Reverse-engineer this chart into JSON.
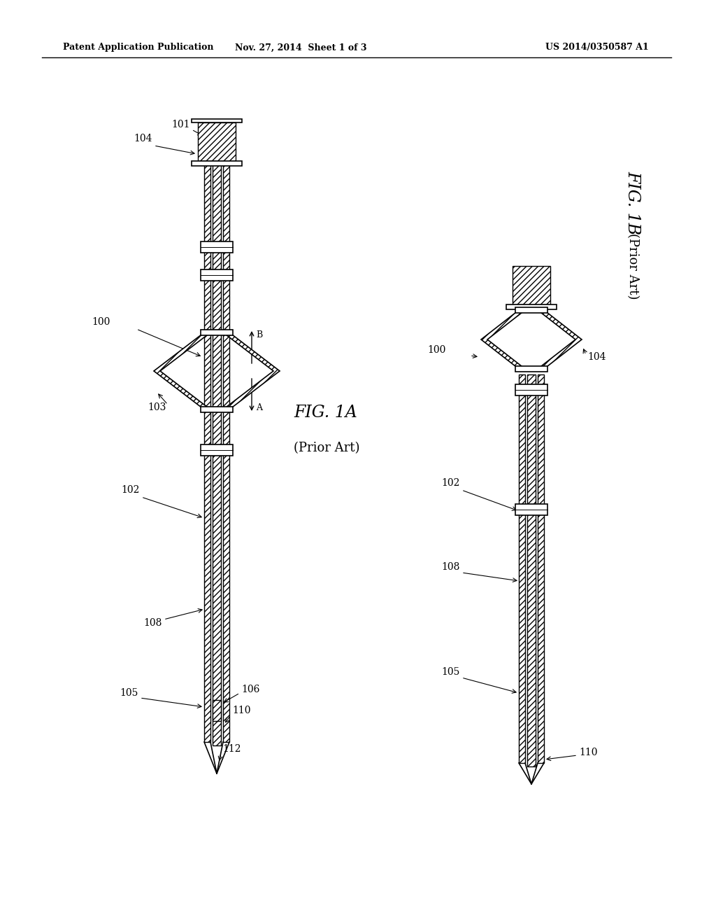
{
  "header_left": "Patent Application Publication",
  "header_mid": "Nov. 27, 2014  Sheet 1 of 3",
  "header_right": "US 2014/0350587 A1",
  "fig1a_label": "FIG. 1A",
  "fig1a_sub": "(Prior Art)",
  "fig1b_label": "FIG. 1B",
  "fig1b_sub": "(Prior Art)",
  "background_color": "#ffffff",
  "line_color": "#000000"
}
